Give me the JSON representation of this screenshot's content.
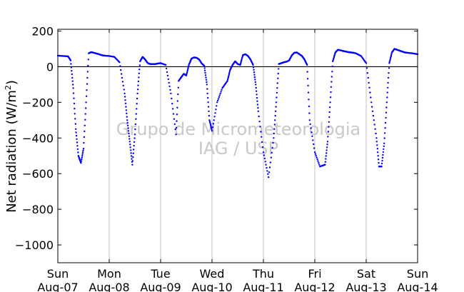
{
  "chart_data": {
    "type": "scatter",
    "title": "",
    "xlabel": "",
    "ylabel_main": "Net radiation (W/m",
    "ylabel_sup": "2",
    "ylabel_close": ")",
    "ylim": [
      -1100,
      210
    ],
    "xlim": [
      0,
      7
    ],
    "grid": "vertical",
    "y_ticks": [
      200,
      0,
      -200,
      -400,
      -600,
      -800,
      -1000
    ],
    "y_tick_labels": [
      "200",
      "0",
      "−200",
      "−400",
      "−600",
      "−800",
      "−1000"
    ],
    "x_ticks": [
      {
        "day": "Sun",
        "date": "Aug-07"
      },
      {
        "day": "Mon",
        "date": "Aug-08"
      },
      {
        "day": "Tue",
        "date": "Aug-09"
      },
      {
        "day": "Wed",
        "date": "Aug-10"
      },
      {
        "day": "Thu",
        "date": "Aug-11"
      },
      {
        "day": "Fri",
        "date": "Aug-12"
      },
      {
        "day": "Sat",
        "date": "Aug-13"
      },
      {
        "day": "Sun",
        "date": "Aug-14"
      }
    ],
    "watermark": [
      "Grupo de Micrometeorologia",
      "IAG / USP"
    ],
    "series_color": "#0000ff",
    "series": [
      {
        "x": [
          0.0,
          0.1,
          0.2,
          0.25,
          0.3,
          0.35,
          0.4,
          0.45,
          0.5,
          0.55,
          0.6,
          0.65,
          0.7,
          0.75,
          0.8,
          0.85,
          0.9,
          1.0,
          1.1,
          1.2,
          1.3,
          1.35,
          1.4,
          1.45,
          1.5,
          1.55,
          1.6,
          1.65,
          1.7,
          1.75,
          1.8,
          1.85,
          1.9,
          1.95,
          2.0,
          2.1,
          2.2,
          2.3,
          2.35,
          2.4,
          2.45,
          2.5,
          2.55,
          2.6,
          2.65,
          2.7,
          2.75,
          2.8,
          2.85,
          2.9,
          2.95,
          3.0,
          3.1,
          3.2,
          3.3,
          3.35,
          3.4,
          3.45,
          3.5,
          3.55,
          3.6,
          3.65,
          3.7,
          3.75,
          3.8,
          3.85,
          3.9,
          4.0,
          4.1,
          4.2,
          4.25,
          4.3,
          4.35,
          4.4,
          4.45,
          4.5,
          4.55,
          4.6,
          4.65,
          4.7,
          4.75,
          4.8,
          4.85,
          4.9,
          5.0,
          5.1,
          5.2,
          5.25,
          5.3,
          5.35,
          5.4,
          5.45,
          5.5,
          5.55,
          5.6,
          5.65,
          5.7,
          5.75,
          5.8,
          5.9,
          6.0,
          6.1,
          6.2,
          6.25,
          6.3,
          6.35,
          6.4,
          6.45,
          6.5,
          6.55,
          6.6,
          6.65,
          6.7,
          6.75,
          6.8,
          6.9,
          7.0
        ],
        "y": [
          62,
          60,
          58,
          35,
          -120,
          -350,
          -500,
          -540,
          -460,
          -200,
          75,
          82,
          78,
          74,
          70,
          65,
          62,
          60,
          55,
          25,
          -150,
          -300,
          -420,
          -550,
          -380,
          -150,
          30,
          55,
          40,
          20,
          15,
          15,
          15,
          18,
          20,
          10,
          -150,
          -380,
          -80,
          -60,
          -40,
          -50,
          10,
          45,
          52,
          50,
          40,
          18,
          5,
          -100,
          -300,
          -360,
          -200,
          -120,
          -80,
          -20,
          10,
          30,
          15,
          10,
          65,
          70,
          60,
          40,
          10,
          -100,
          -250,
          -480,
          -620,
          -400,
          -200,
          15,
          20,
          25,
          28,
          35,
          62,
          78,
          80,
          70,
          60,
          40,
          10,
          -300,
          -480,
          -560,
          -550,
          -420,
          -200,
          30,
          80,
          95,
          92,
          88,
          85,
          82,
          80,
          78,
          75,
          60,
          20,
          -200,
          -400,
          -560,
          -560,
          -430,
          -200,
          20,
          80,
          100,
          95,
          90,
          85,
          80,
          78,
          75,
          70
        ]
      }
    ]
  }
}
